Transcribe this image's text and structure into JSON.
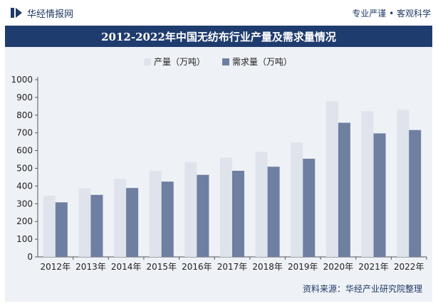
{
  "header": {
    "brand": "华经情报网",
    "tagline": "专业严谨 • 客观科学"
  },
  "title": "2012-2022年中国无纺布行业产量及需求量情况",
  "source": "资料来源：华经产业研究院整理",
  "colors": {
    "navy": "#1f3c6e",
    "production": "#dfe3ec",
    "demand": "#6e7fa1",
    "axis": "#555555",
    "text": "#222222"
  },
  "chart_data": {
    "type": "bar",
    "title": "2012-2022年中国无纺布行业产量及需求量情况",
    "categories": [
      "2012年",
      "2013年",
      "2014年",
      "2015年",
      "2016年",
      "2017年",
      "2018年",
      "2019年",
      "2020年",
      "2021年",
      "2022年"
    ],
    "series": [
      {
        "name": "产量（万吨）",
        "color": "#dfe3ec",
        "values": [
          345,
          387,
          440,
          485,
          535,
          560,
          593,
          645,
          878,
          822,
          830
        ]
      },
      {
        "name": "需求量（万吨）",
        "color": "#6e7fa1",
        "values": [
          308,
          350,
          389,
          425,
          463,
          486,
          509,
          554,
          757,
          697,
          716
        ]
      }
    ],
    "yticks": [
      0,
      100,
      200,
      300,
      400,
      500,
      600,
      700,
      800,
      900,
      1000
    ],
    "ylim": [
      0,
      1000
    ],
    "xlabel": "",
    "ylabel": "",
    "legend_position": "top-left",
    "grid": false
  }
}
